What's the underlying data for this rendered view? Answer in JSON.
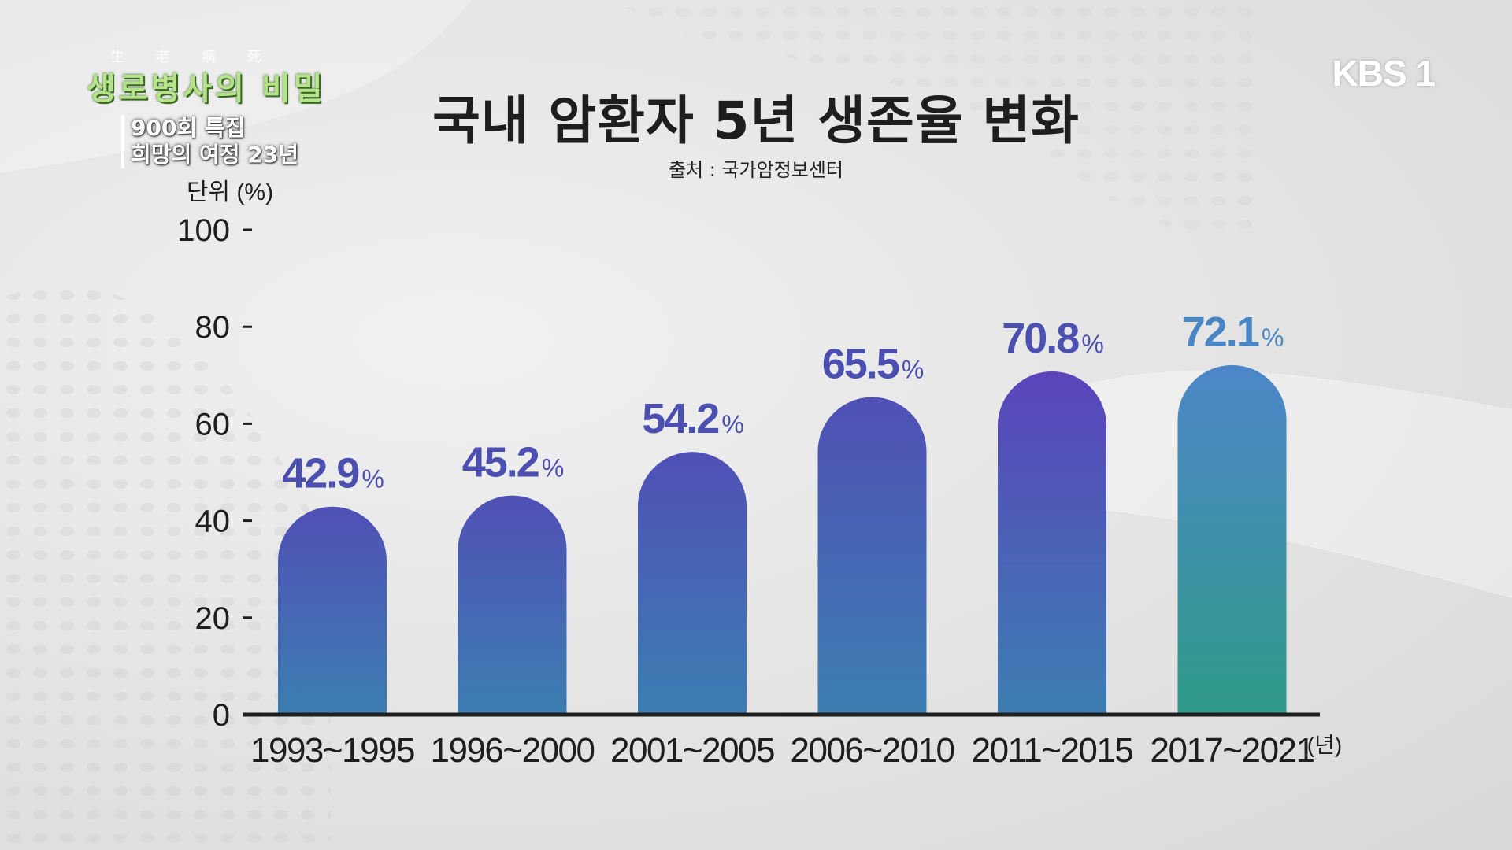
{
  "program": {
    "hanja": "生老病死",
    "title": "생로병사의 비밀",
    "subtitle_line1": "900회 특집",
    "subtitle_line2": "희망의 여정 23년"
  },
  "broadcaster": {
    "logo_text": "KBS 1"
  },
  "chart_data": {
    "type": "bar",
    "title": "국내 암환자 5년 생존율 변화",
    "subtitle": "출처 : 국가암정보센터",
    "ylabel": "단위 (%)",
    "xlabel": "(년)",
    "ylim": [
      0,
      100
    ],
    "yticks": [
      "0",
      "20",
      "40",
      "60",
      "80",
      "100"
    ],
    "categories": [
      "1993~1995",
      "1996~2000",
      "2001~2005",
      "2006~2010",
      "2011~2015",
      "2017~2021"
    ],
    "values": [
      42.9,
      45.2,
      54.2,
      65.5,
      70.8,
      72.1
    ],
    "value_labels": [
      "42.9",
      "45.2",
      "54.2",
      "65.5",
      "70.8",
      "72.1"
    ],
    "value_unit": "%",
    "colors": {
      "bar_top": "#5050b5",
      "bar_bottom": "#3c7eb2",
      "bar_top_highlight": "#5a44ba",
      "last_bar_top": "#4d86c8",
      "last_bar_bottom": "#2e9a88",
      "label_blue": "#4a4fb0",
      "label_last": "#4a86c4",
      "axis": "#1e1e1e"
    }
  }
}
